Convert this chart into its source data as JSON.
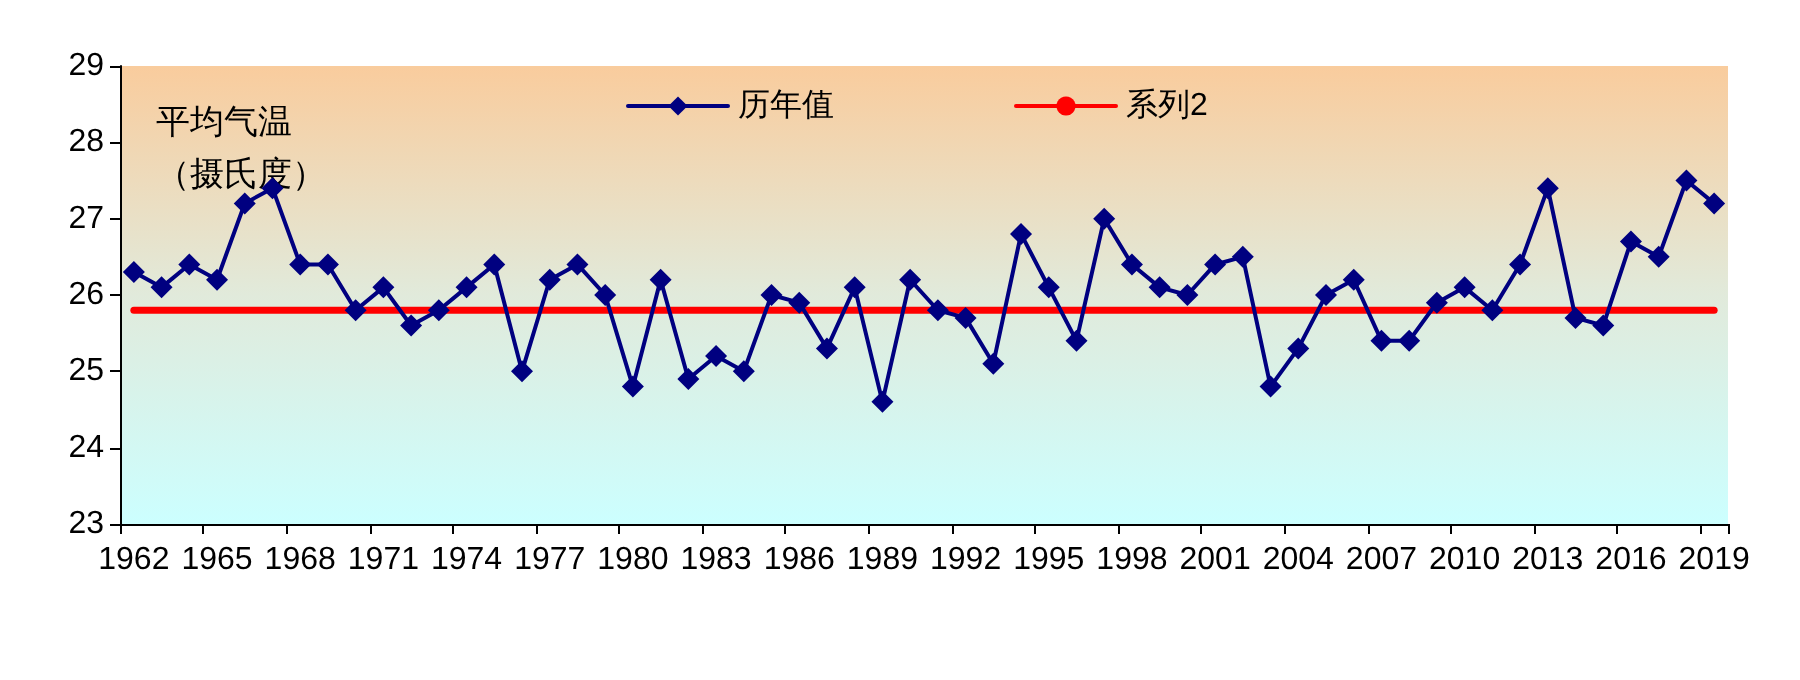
{
  "chart_data": {
    "type": "line",
    "ylabel": "平均气温（摄氏度）",
    "categories": [
      "1962",
      null,
      null,
      "1965",
      null,
      null,
      "1968",
      null,
      null,
      "1971",
      null,
      null,
      "1974",
      null,
      null,
      "1977",
      null,
      null,
      "1980",
      null,
      null,
      "1983",
      null,
      null,
      "1986",
      null,
      null,
      "1989",
      null,
      null,
      "1992",
      null,
      null,
      "1995",
      null,
      null,
      "1998",
      null,
      null,
      "2001",
      null,
      null,
      "2004",
      null,
      null,
      "2007",
      null,
      null,
      "2010",
      null,
      null,
      "2013",
      null,
      null,
      "2016",
      null,
      null,
      "2019"
    ],
    "series": [
      {
        "name": "历年值",
        "color": "#000080",
        "marker": "diamond",
        "values": [
          26.3,
          26.1,
          26.4,
          26.2,
          27.2,
          27.4,
          26.4,
          26.4,
          25.8,
          26.1,
          25.6,
          25.8,
          26.1,
          26.4,
          25.0,
          26.2,
          26.4,
          26.0,
          24.8,
          26.2,
          24.9,
          25.2,
          25.0,
          26.0,
          25.9,
          25.3,
          26.1,
          24.6,
          26.2,
          25.8,
          25.7,
          25.1,
          26.8,
          26.1,
          25.4,
          27.0,
          26.4,
          26.1,
          26.0,
          26.4,
          26.5,
          24.8,
          25.3,
          26.0,
          26.2,
          25.4,
          25.4,
          25.9,
          26.1,
          25.8,
          26.4,
          27.4,
          25.7,
          25.6,
          26.7,
          26.5,
          27.5,
          27.2
        ]
      },
      {
        "name": "系列2",
        "color": "#ff0000",
        "marker": "none",
        "values": [
          25.8,
          25.8,
          25.8,
          25.8,
          25.8,
          25.8,
          25.8,
          25.8,
          25.8,
          25.8,
          25.8,
          25.8,
          25.8,
          25.8,
          25.8,
          25.8,
          25.8,
          25.8,
          25.8,
          25.8,
          25.8,
          25.8,
          25.8,
          25.8,
          25.8,
          25.8,
          25.8,
          25.8,
          25.8,
          25.8,
          25.8,
          25.8,
          25.8,
          25.8,
          25.8,
          25.8,
          25.8,
          25.8,
          25.8,
          25.8,
          25.8,
          25.8,
          25.8,
          25.8,
          25.8,
          25.8,
          25.8,
          25.8,
          25.8,
          25.8,
          25.8,
          25.8,
          25.8,
          25.8,
          25.8,
          25.8,
          25.8,
          25.8
        ]
      }
    ],
    "ylim": [
      23,
      29
    ],
    "yticks": [
      23,
      24,
      25,
      26,
      27,
      28,
      29
    ],
    "grid": false,
    "legend": "top",
    "line_style": "solid"
  }
}
